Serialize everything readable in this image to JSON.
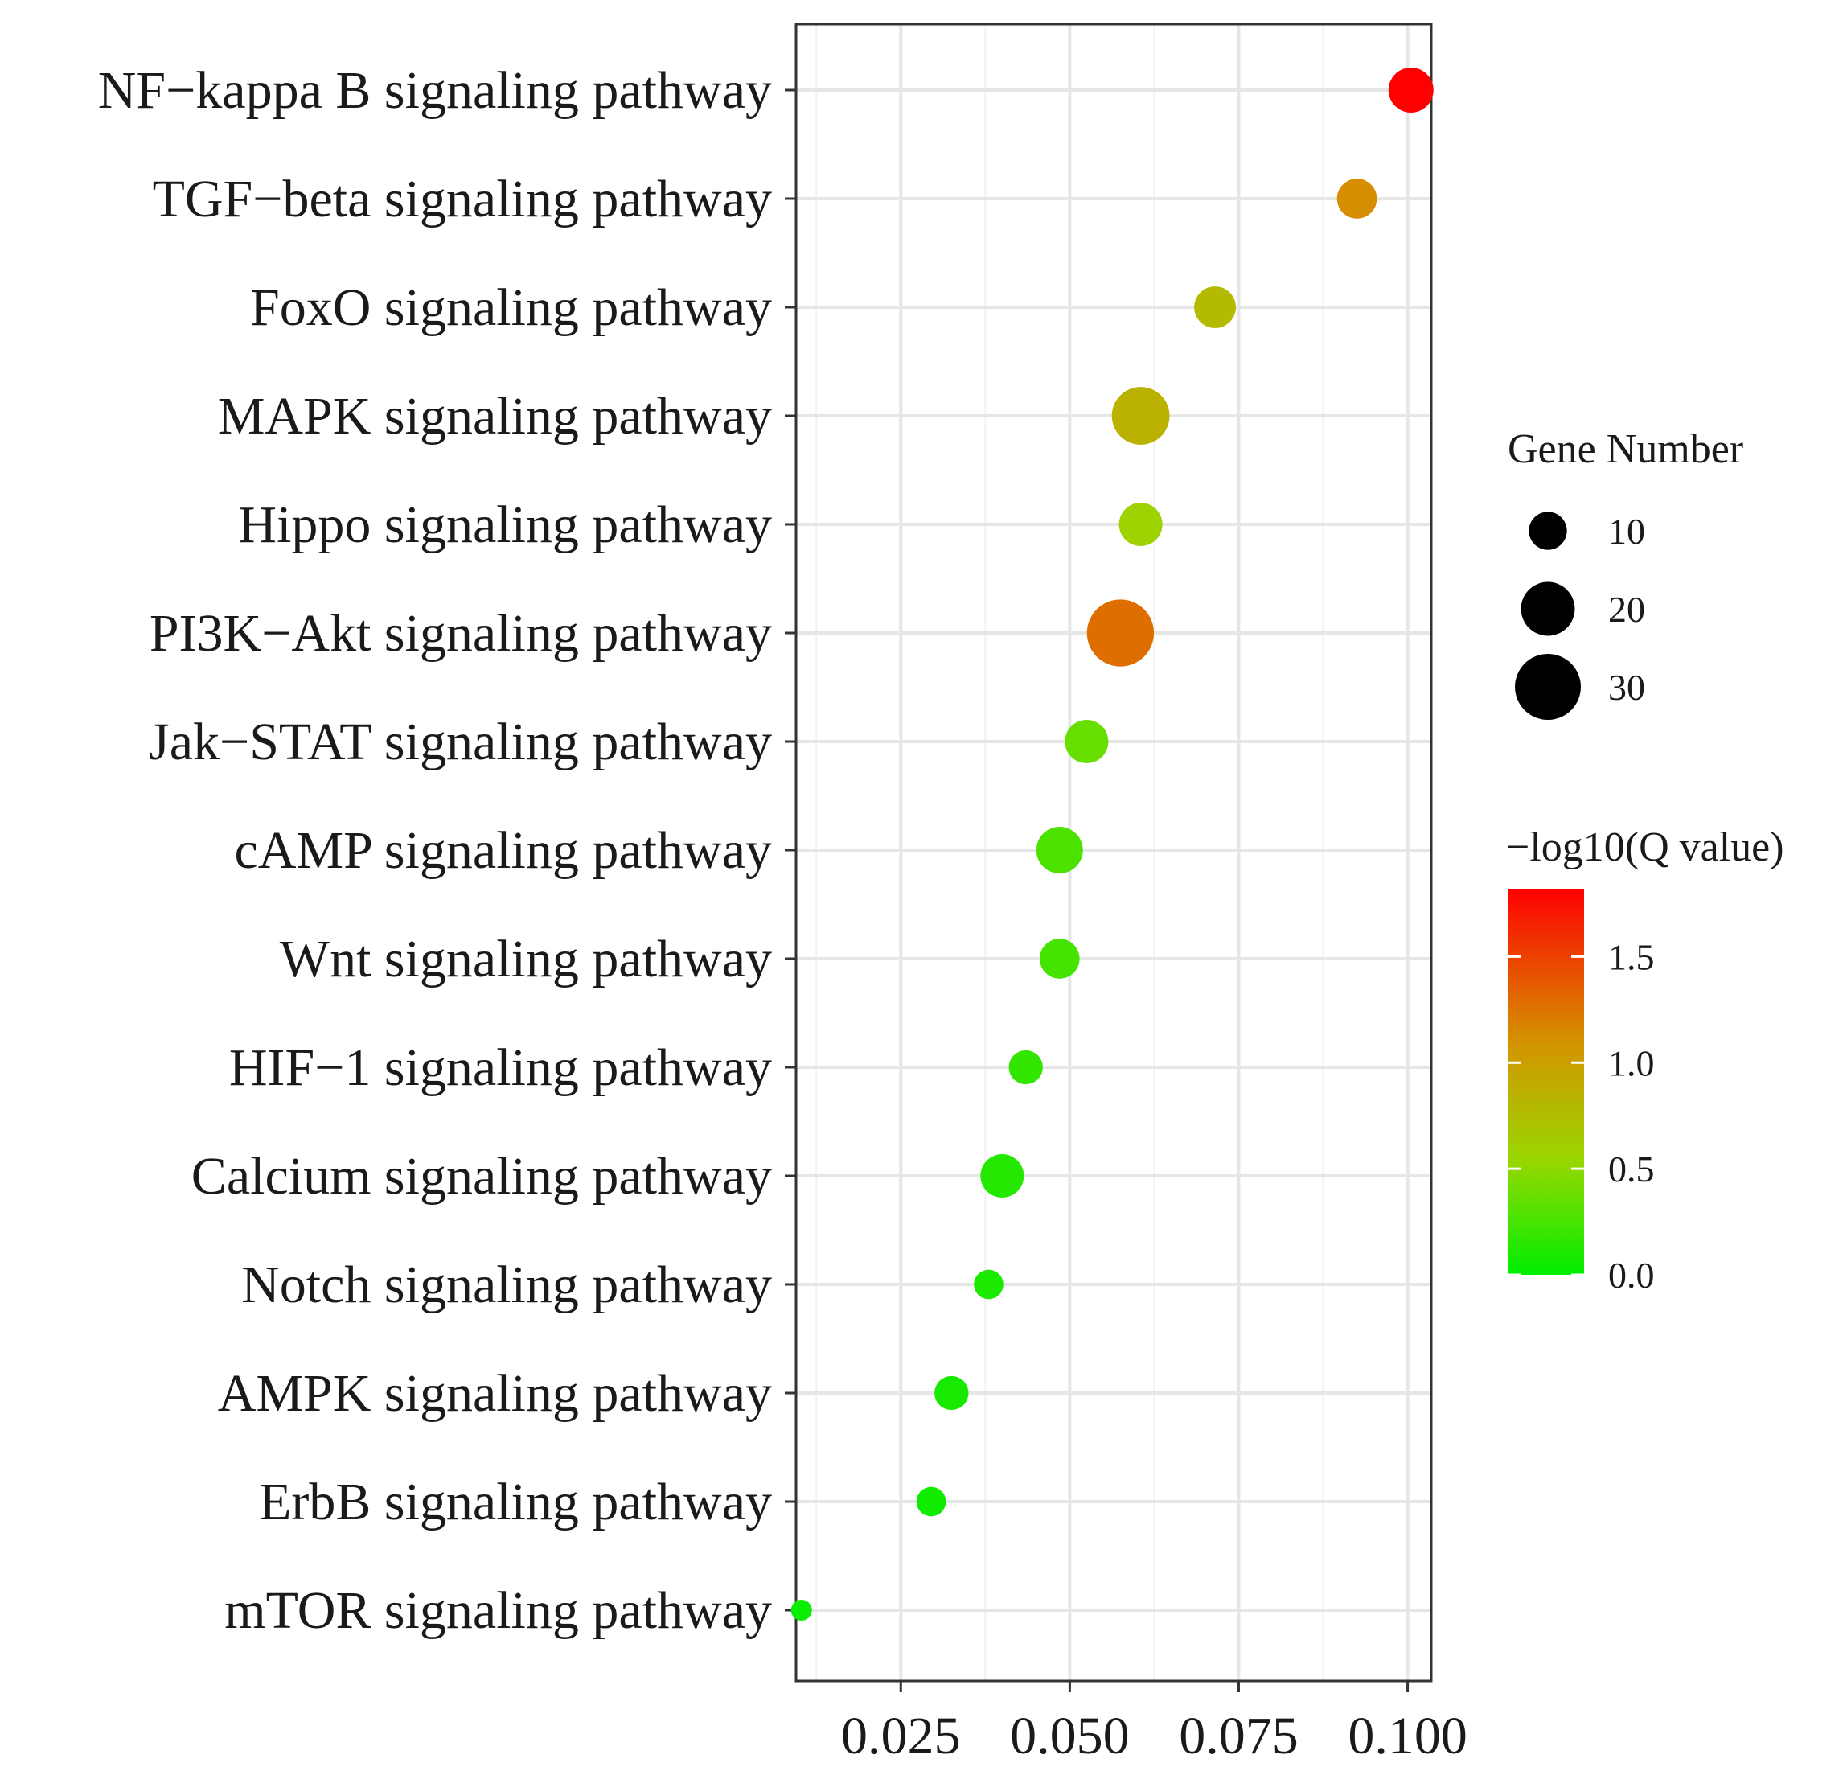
{
  "chart_data": {
    "type": "scatter",
    "title": "",
    "xlabel": "",
    "ylabel": "",
    "xlim": [
      0.0095,
      0.1035
    ],
    "x_ticks": [
      "0.025",
      "0.050",
      "0.075",
      "0.100"
    ],
    "x_tick_values": [
      0.025,
      0.05,
      0.075,
      0.1
    ],
    "categories": [
      "NF−kappa B signaling pathway",
      "TGF−beta signaling pathway",
      "FoxO signaling pathway",
      "MAPK signaling pathway",
      "Hippo signaling pathway",
      "PI3K−Akt signaling pathway",
      "Jak−STAT signaling pathway",
      "cAMP signaling pathway",
      "Wnt signaling pathway",
      "HIF−1 signaling pathway",
      "Calcium signaling pathway",
      "Notch signaling pathway",
      "AMPK signaling pathway",
      "ErbB signaling pathway",
      "mTOR signaling pathway"
    ],
    "x": [
      0.1005,
      0.0925,
      0.0715,
      0.0605,
      0.0605,
      0.0575,
      0.0525,
      0.0485,
      0.0485,
      0.0435,
      0.04,
      0.038,
      0.0325,
      0.0295,
      0.0103
    ],
    "gene_number": [
      14,
      11,
      12,
      23,
      13,
      31,
      13,
      15,
      11,
      8,
      13,
      6,
      8,
      6,
      3
    ],
    "neg_log10_q": [
      1.82,
      1.12,
      0.78,
      0.85,
      0.58,
      1.28,
      0.36,
      0.27,
      0.24,
      0.18,
      0.13,
      0.1,
      0.08,
      0.06,
      0.03
    ],
    "size_legend": {
      "title": "Gene Number",
      "labels": [
        "10",
        "20",
        "30"
      ],
      "values": [
        10,
        20,
        30
      ]
    },
    "color_legend": {
      "title": "−log10(Q value)",
      "labels": [
        "1.5",
        "1.0",
        "0.5",
        "0.0"
      ],
      "values": [
        1.5,
        1.0,
        0.5,
        0.0
      ],
      "range": [
        0.0,
        1.82
      ],
      "low_color": "#00ee00",
      "high_color": "#ff0000"
    },
    "grid": true,
    "legend_position": "right"
  },
  "colors": {
    "low": "#00ee00",
    "mid": "#d49400",
    "high": "#ff0000",
    "grid": "#ebebeb",
    "panel_border": "#333333"
  }
}
